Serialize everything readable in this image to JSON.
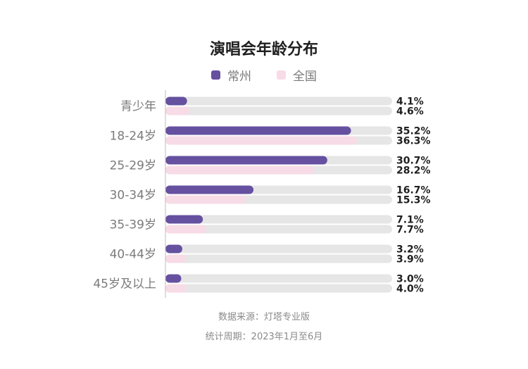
{
  "chart_data": {
    "type": "bar",
    "orientation": "horizontal",
    "title": "演唱会年龄分布",
    "categories": [
      "青少年",
      "18-24岁",
      "25-29岁",
      "30-34岁",
      "35-39岁",
      "40-44岁",
      "45岁及以上"
    ],
    "series": [
      {
        "name": "常州",
        "color": "#6650a0",
        "values": [
          4.1,
          35.2,
          30.7,
          16.7,
          7.1,
          3.2,
          3.0
        ],
        "labels": [
          "4.1%",
          "35.2%",
          "30.7%",
          "16.7%",
          "7.1%",
          "3.2%",
          "3.0%"
        ]
      },
      {
        "name": "全国",
        "color": "#f7dbe6",
        "values": [
          4.6,
          36.3,
          28.2,
          15.3,
          7.7,
          3.9,
          4.0
        ],
        "labels": [
          "4.6%",
          "36.3%",
          "28.2%",
          "15.3%",
          "7.7%",
          "3.9%",
          "4.0%"
        ]
      }
    ],
    "track_color": "#e6e6e6",
    "xlim": [
      0,
      43
    ],
    "legend_position": "top-center",
    "grid": false
  },
  "footer": {
    "source": "数据来源：灯塔专业版",
    "period": "统计周期：2023年1月至6月"
  }
}
